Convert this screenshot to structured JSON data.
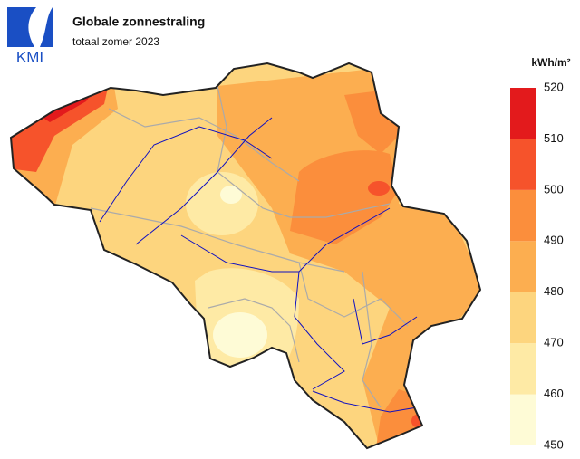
{
  "logo": "KMI",
  "title": "Globale zonnestraling",
  "subtitle": "totaal zomer 2023",
  "legend": {
    "unit": "kWh/m²",
    "ticks": [
      450,
      460,
      470,
      480,
      490,
      500,
      510,
      520
    ],
    "colors": [
      "#fefbd6",
      "#feeaa5",
      "#fdd57e",
      "#fcae50",
      "#fb8e3c",
      "#f6532b",
      "#e31a1c"
    ]
  }
}
